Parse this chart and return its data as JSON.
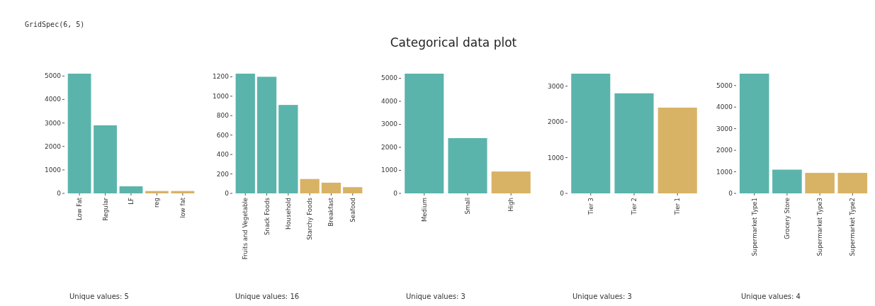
{
  "chart_data": [
    {
      "type": "bar",
      "categories": [
        "Low Fat",
        "Regular",
        "LF",
        "reg",
        "low fat"
      ],
      "values": [
        5100,
        2900,
        300,
        100,
        100
      ],
      "colors": [
        "#5ab4ac",
        "#5ab4ac",
        "#5ab4ac",
        "#d8b365",
        "#d8b365"
      ],
      "ylim": [
        0,
        5100
      ],
      "yticks": [
        0,
        1000,
        2000,
        3000,
        4000,
        5000
      ],
      "annotations": [
        "GridSpec(6, 5)",
        "Unique values: 5"
      ]
    },
    {
      "type": "bar",
      "categories": [
        "Fruits and Vegetable",
        "Snack Foods",
        "Household",
        "Starchy Foods",
        "Breakfast",
        "Seafood"
      ],
      "values": [
        1232,
        1200,
        910,
        148,
        110,
        64
      ],
      "colors": [
        "#5ab4ac",
        "#5ab4ac",
        "#5ab4ac",
        "#d8b365",
        "#d8b365",
        "#d8b365"
      ],
      "ylim": [
        0,
        1232
      ],
      "yticks": [
        0,
        200,
        400,
        600,
        800,
        1000,
        1200
      ],
      "annotations": [
        "Unique values: 16"
      ]
    },
    {
      "type": "bar",
      "title": "Categorical data plot",
      "categories": [
        "Medium",
        "Small",
        "High"
      ],
      "values": [
        5200,
        2400,
        950
      ],
      "colors": [
        "#5ab4ac",
        "#5ab4ac",
        "#d8b365"
      ],
      "ylim": [
        0,
        5200
      ],
      "yticks": [
        0,
        1000,
        2000,
        3000,
        4000,
        5000
      ],
      "annotations": [
        "Unique values: 3"
      ]
    },
    {
      "type": "bar",
      "categories": [
        "Tier 3",
        "Tier 2",
        "Tier 1"
      ],
      "values": [
        3350,
        2800,
        2400
      ],
      "colors": [
        "#5ab4ac",
        "#5ab4ac",
        "#d8b365"
      ],
      "ylim": [
        0,
        3350
      ],
      "yticks": [
        0,
        1000,
        2000,
        3000
      ],
      "annotations": [
        "Unique values: 3"
      ]
    },
    {
      "type": "bar",
      "categories": [
        "Supermarket Type1",
        "Grocery Store",
        "Supermarket Type3",
        "Supermarket Type2"
      ],
      "values": [
        5550,
        1100,
        950,
        950
      ],
      "colors": [
        "#5ab4ac",
        "#5ab4ac",
        "#d8b365",
        "#d8b365"
      ],
      "ylim": [
        0,
        5550
      ],
      "yticks": [
        0,
        1000,
        2000,
        3000,
        4000,
        5000
      ],
      "annotations": [
        "Unique values: 4"
      ]
    }
  ]
}
